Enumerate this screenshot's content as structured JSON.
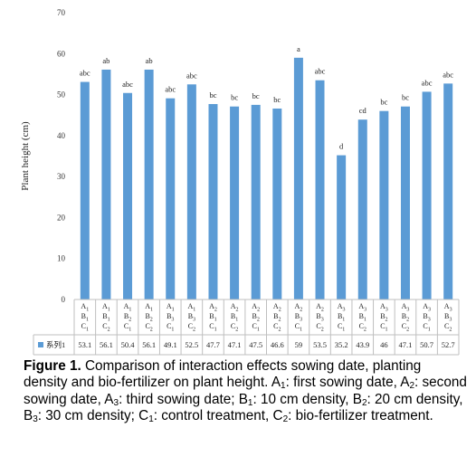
{
  "chart_data": {
    "type": "bar",
    "ylabel": "Plant height (cm)",
    "ylim": [
      0,
      70
    ],
    "yticks": [
      0,
      10,
      20,
      30,
      40,
      50,
      60,
      70
    ],
    "grid": false,
    "legend": "table-bottom",
    "bar_color": "#5B9BD5",
    "categories": [
      [
        "A1",
        "B1",
        "C1"
      ],
      [
        "A1",
        "B1",
        "C2"
      ],
      [
        "A1",
        "B2",
        "C1"
      ],
      [
        "A1",
        "B2",
        "C2"
      ],
      [
        "A1",
        "B3",
        "C1"
      ],
      [
        "A1",
        "B3",
        "C2"
      ],
      [
        "A2",
        "B1",
        "C1"
      ],
      [
        "A2",
        "B1",
        "C2"
      ],
      [
        "A2",
        "B2",
        "C1"
      ],
      [
        "A2",
        "B2",
        "C2"
      ],
      [
        "A2",
        "B3",
        "C1"
      ],
      [
        "A2",
        "B3",
        "C2"
      ],
      [
        "A3",
        "B1",
        "C1"
      ],
      [
        "A3",
        "B1",
        "C2"
      ],
      [
        "A3",
        "B2",
        "C1"
      ],
      [
        "A3",
        "B2",
        "C2"
      ],
      [
        "A3",
        "B3",
        "C1"
      ],
      [
        "A3",
        "B3",
        "C2"
      ]
    ],
    "series": [
      {
        "name": "系列1",
        "values": [
          53.1,
          56.1,
          50.4,
          56.1,
          49.1,
          52.5,
          47.7,
          47.1,
          47.5,
          46.6,
          59,
          53.5,
          35.2,
          43.9,
          46,
          47.1,
          50.7,
          52.7
        ],
        "value_text": [
          "53.1",
          "56.1",
          "50.4",
          "56.1",
          "49.1",
          "52.5",
          "47.7",
          "47.1",
          "47.5",
          "46.6",
          "59",
          "53.5",
          "35.2",
          "43.9",
          "46",
          "47.1",
          "50.7",
          "52.7"
        ],
        "letters": [
          "abc",
          "ab",
          "abc",
          "ab",
          "abc",
          "abc",
          "bc",
          "bc",
          "bc",
          "bc",
          "a",
          "abc",
          "d",
          "cd",
          "bc",
          "bc",
          "abc",
          "abc"
        ]
      }
    ]
  },
  "caption": {
    "label": "Figure 1.",
    "segments": [
      {
        "t": " Comparison of interaction effects sowing date, planting density and bio-fertilizer on plant height. A"
      },
      {
        "s": "1"
      },
      {
        "t": ": first sowing date, A"
      },
      {
        "s": "2"
      },
      {
        "t": ": second sowing date, A"
      },
      {
        "s": "3"
      },
      {
        "t": ": third sowing date; B"
      },
      {
        "s": "1"
      },
      {
        "t": ": 10 cm density, B"
      },
      {
        "s": "2"
      },
      {
        "t": ": 20 cm density, B"
      },
      {
        "s": "3"
      },
      {
        "t": ": 30 cm density; C"
      },
      {
        "s": "1"
      },
      {
        "t": ": control treatment, C"
      },
      {
        "s": "2"
      },
      {
        "t": ": bio-fertilizer treatment."
      }
    ]
  }
}
